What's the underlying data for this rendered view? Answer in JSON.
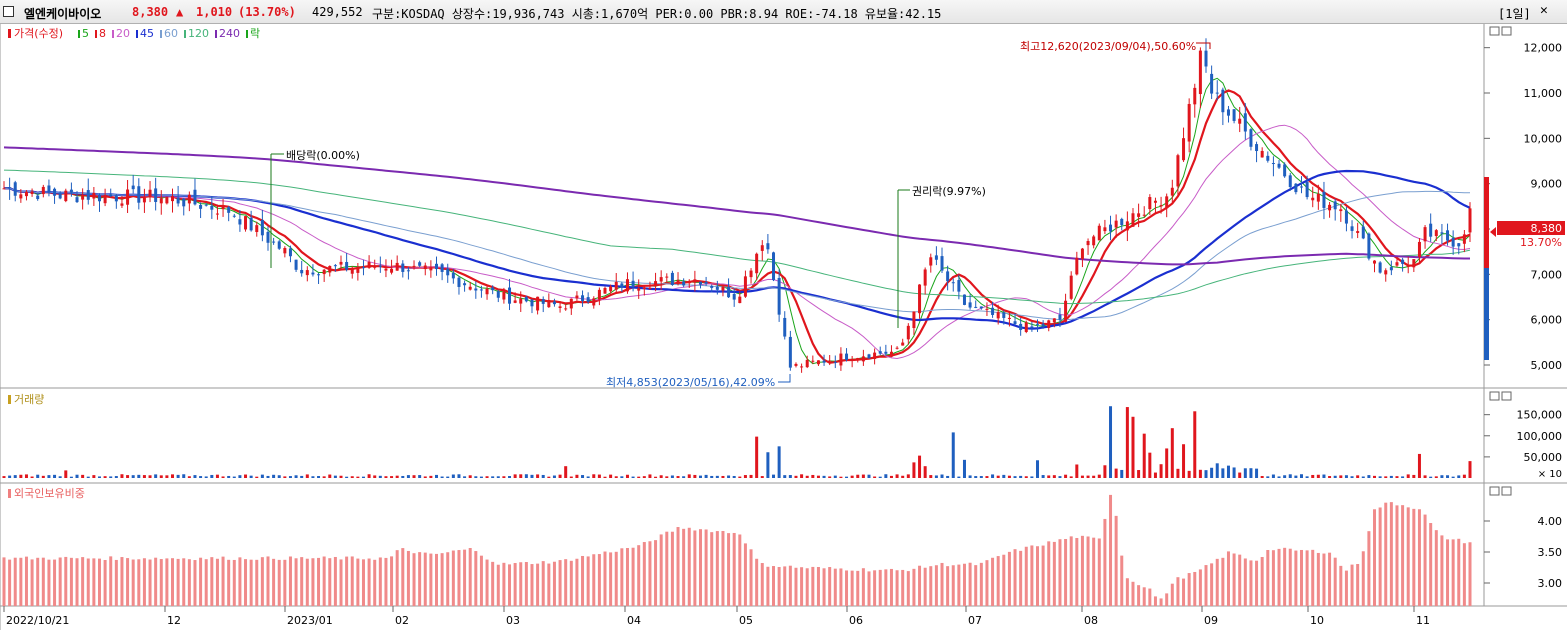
{
  "header": {
    "stock_name": "엘엔케이바이오",
    "price": "8,380",
    "change_arrow": "▲",
    "change": "1,010",
    "change_pct": "(13.70%)",
    "volume": "429,552",
    "info": "구분:KOSDAQ 상장수:19,936,743 시총:1,670억 PER:0.00 PBR:8.94 ROE:-74.18 유보율:42.15",
    "period": "[1일]",
    "colors": {
      "up": "#e0161d",
      "down": "#1f5fbf"
    }
  },
  "legend": {
    "price_label": "가격(수정)",
    "ma": [
      {
        "label": "5",
        "color": "#1aa51a"
      },
      {
        "label": "8",
        "color": "#e0161d"
      },
      {
        "label": "20",
        "color": "#c85cc8"
      },
      {
        "label": "45",
        "color": "#1a2fd0"
      },
      {
        "label": "60",
        "color": "#7a9fd0"
      },
      {
        "label": "120",
        "color": "#46b47a"
      },
      {
        "label": "240",
        "color": "#7b2ab0"
      },
      {
        "label": "락",
        "color": "#1aa51a"
      }
    ],
    "volume_label": "거래량",
    "foreign_label": "외국인보유비중"
  },
  "annotations": {
    "high": "최고12,620(2023/09/04),50.60%",
    "low": "최저4,853(2023/05/16),42.09%",
    "dividend": "배당락(0.00%)",
    "rights": "권리락(9.97%)"
  },
  "price_badge": {
    "value": "8,380",
    "pct": "13.70%"
  },
  "chart_data": [
    {
      "type": "candlestick",
      "title": "가격(수정)",
      "y_ticks": [
        "12,000",
        "11,000",
        "10,000",
        "9,000",
        "8,000",
        "7,000",
        "6,000",
        "5,000"
      ],
      "ylim": [
        4800,
        12900
      ],
      "x_labels": [
        "2022/10/21",
        "12",
        "2023/01",
        "02",
        "03",
        "04",
        "05",
        "06",
        "07",
        "08",
        "09",
        "10",
        "11"
      ],
      "key_points": [
        {
          "date": "2022-10-21",
          "close": 8900
        },
        {
          "date": "2022-12",
          "close": 8700
        },
        {
          "date": "2023-01",
          "close": 7500
        },
        {
          "date": "2023-02",
          "close": 7200
        },
        {
          "date": "2023-03",
          "close": 6500
        },
        {
          "date": "2023-04",
          "close": 6800
        },
        {
          "date": "2023-05-16",
          "low": 4853
        },
        {
          "date": "2023-06",
          "close": 5200
        },
        {
          "date": "2023-07",
          "close": 6000
        },
        {
          "date": "2023-08",
          "close": 8500
        },
        {
          "date": "2023-09-04",
          "high": 12620
        },
        {
          "date": "2023-10",
          "close": 8700
        },
        {
          "date": "2023-11",
          "close": 7300
        },
        {
          "date": "last",
          "close": 8380
        }
      ]
    },
    {
      "type": "bar",
      "title": "거래량",
      "y_ticks": [
        "150,000",
        "100,000",
        "50,000"
      ],
      "unit": "× 10",
      "ylim": [
        0,
        180000
      ]
    },
    {
      "type": "bar",
      "title": "외국인보유비중",
      "y_ticks": [
        "4.00",
        "3.50",
        "3.00"
      ],
      "ylim": [
        2.6,
        4.8
      ]
    }
  ]
}
